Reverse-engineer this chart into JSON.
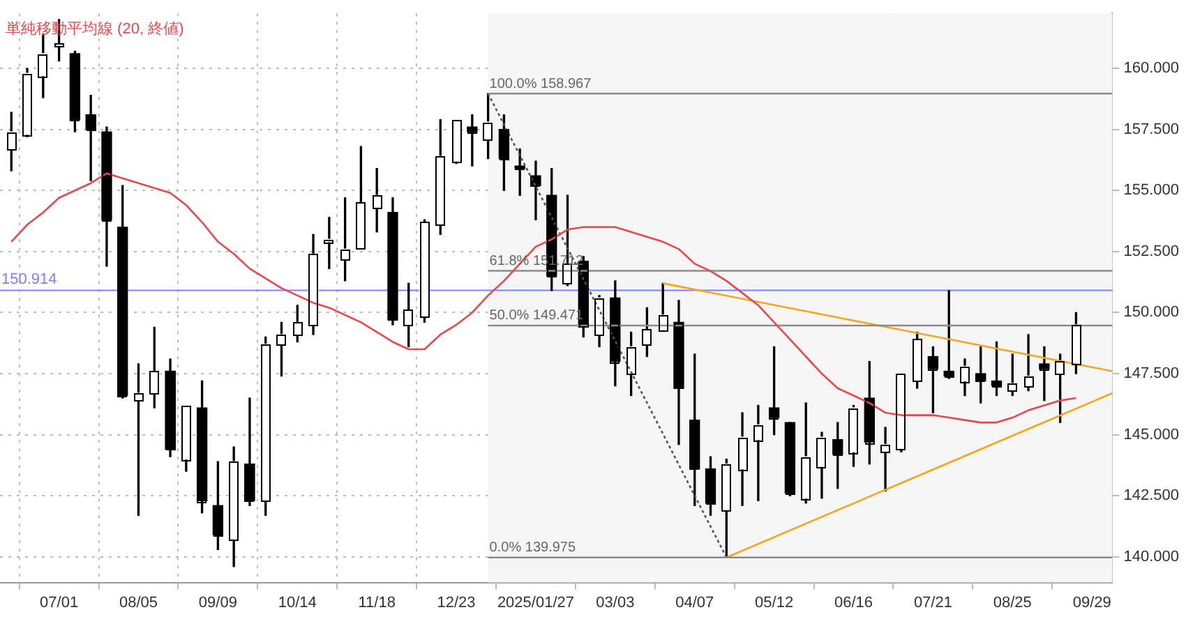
{
  "chart_data": {
    "type": "candlestick",
    "x": [
      "2024-06-10",
      "2024-06-17",
      "2024-06-24",
      "2024-07-01",
      "2024-07-08",
      "2024-07-15",
      "2024-07-22",
      "2024-07-29",
      "2024-08-05",
      "2024-08-12",
      "2024-08-19",
      "2024-08-26",
      "2024-09-02",
      "2024-09-09",
      "2024-09-16",
      "2024-09-23",
      "2024-09-30",
      "2024-10-07",
      "2024-10-14",
      "2024-10-21",
      "2024-10-28",
      "2024-11-04",
      "2024-11-11",
      "2024-11-18",
      "2024-11-25",
      "2024-12-02",
      "2024-12-09",
      "2024-12-16",
      "2024-12-23",
      "2024-12-30",
      "2025-01-06",
      "2025-01-13",
      "2025-01-20",
      "2025-01-27",
      "2025-02-03",
      "2025-02-10",
      "2025-02-17",
      "2025-02-24",
      "2025-03-03",
      "2025-03-10",
      "2025-03-17",
      "2025-03-24",
      "2025-03-31",
      "2025-04-07",
      "2025-04-14",
      "2025-04-21",
      "2025-04-28",
      "2025-05-05",
      "2025-05-12",
      "2025-05-19",
      "2025-05-26",
      "2025-06-02",
      "2025-06-09",
      "2025-06-16",
      "2025-06-23",
      "2025-06-30",
      "2025-07-07",
      "2025-07-14",
      "2025-07-21",
      "2025-07-28",
      "2025-08-04",
      "2025-08-11",
      "2025-08-18",
      "2025-08-25",
      "2025-09-01",
      "2025-09-08",
      "2025-09-15",
      "2025-09-22"
    ],
    "ohlc": [
      [
        156.7,
        158.2,
        155.8,
        157.4
      ],
      [
        157.3,
        160.0,
        157.2,
        159.8
      ],
      [
        159.7,
        161.4,
        158.8,
        160.6
      ],
      [
        160.9,
        162.0,
        160.3,
        161.0
      ],
      [
        160.6,
        160.7,
        157.4,
        157.9
      ],
      [
        158.1,
        158.9,
        155.4,
        157.5
      ],
      [
        157.4,
        157.6,
        151.9,
        153.8
      ],
      [
        153.5,
        155.2,
        146.5,
        146.6
      ],
      [
        146.4,
        147.9,
        141.7,
        146.7
      ],
      [
        146.7,
        149.4,
        146.1,
        147.6
      ],
      [
        147.6,
        148.1,
        144.1,
        144.4
      ],
      [
        144.0,
        146.2,
        143.5,
        146.2
      ],
      [
        146.1,
        147.2,
        141.8,
        142.3
      ],
      [
        142.1,
        143.9,
        140.3,
        140.9
      ],
      [
        140.7,
        144.5,
        139.6,
        143.9
      ],
      [
        143.8,
        146.5,
        142.1,
        142.3
      ],
      [
        142.3,
        149.0,
        141.7,
        148.7
      ],
      [
        148.7,
        149.6,
        147.4,
        149.1
      ],
      [
        149.1,
        150.3,
        148.8,
        149.6
      ],
      [
        149.5,
        153.2,
        149.1,
        152.4
      ],
      [
        152.9,
        153.9,
        151.8,
        153.0
      ],
      [
        152.2,
        154.7,
        151.3,
        152.6
      ],
      [
        152.6,
        156.8,
        152.6,
        154.5
      ],
      [
        154.3,
        155.9,
        153.3,
        154.8
      ],
      [
        154.1,
        154.7,
        149.5,
        149.7
      ],
      [
        149.5,
        151.2,
        148.6,
        150.1
      ],
      [
        149.8,
        153.8,
        149.6,
        153.7
      ],
      [
        153.6,
        157.9,
        153.2,
        156.4
      ],
      [
        156.2,
        157.9,
        156.1,
        157.9
      ],
      [
        157.6,
        158.1,
        156.0,
        157.4
      ],
      [
        157.1,
        158.967,
        156.3,
        157.8
      ],
      [
        157.5,
        158.1,
        155.0,
        156.3
      ],
      [
        156.0,
        156.7,
        154.8,
        155.9
      ],
      [
        155.6,
        156.2,
        153.8,
        155.2
      ],
      [
        154.8,
        155.9,
        150.9,
        151.5
      ],
      [
        151.2,
        154.8,
        151.1,
        152.0
      ],
      [
        152.1,
        152.3,
        149.0,
        149.4
      ],
      [
        149.1,
        150.7,
        148.6,
        150.6
      ],
      [
        150.6,
        151.3,
        147.0,
        148.0
      ],
      [
        147.5,
        149.2,
        146.6,
        148.6
      ],
      [
        148.7,
        150.2,
        148.2,
        149.3
      ],
      [
        149.3,
        151.2,
        149.3,
        149.9
      ],
      [
        149.6,
        150.5,
        144.6,
        146.9
      ],
      [
        145.6,
        148.3,
        142.1,
        143.6
      ],
      [
        143.6,
        144.1,
        141.7,
        142.2
      ],
      [
        141.9,
        144.0,
        139.975,
        143.8
      ],
      [
        143.6,
        145.9,
        142.1,
        144.9
      ],
      [
        144.8,
        146.2,
        142.3,
        145.4
      ],
      [
        146.1,
        148.6,
        145.0,
        145.7
      ],
      [
        145.5,
        145.5,
        142.5,
        142.6
      ],
      [
        142.4,
        146.3,
        142.2,
        144.1
      ],
      [
        143.7,
        145.1,
        142.4,
        144.9
      ],
      [
        144.8,
        145.5,
        142.8,
        144.2
      ],
      [
        144.3,
        146.2,
        143.7,
        146.1
      ],
      [
        146.5,
        148.0,
        143.8,
        144.7
      ],
      [
        144.3,
        145.3,
        142.7,
        144.6
      ],
      [
        144.4,
        147.5,
        144.3,
        147.5
      ],
      [
        147.2,
        149.2,
        146.9,
        148.9
      ],
      [
        148.2,
        148.6,
        145.9,
        147.7
      ],
      [
        147.6,
        150.9,
        147.3,
        147.4
      ],
      [
        147.2,
        148.1,
        146.6,
        147.8
      ],
      [
        147.5,
        148.6,
        146.3,
        147.2
      ],
      [
        147.2,
        148.8,
        146.6,
        147.0
      ],
      [
        146.8,
        148.3,
        146.6,
        147.1
      ],
      [
        147.0,
        149.1,
        146.8,
        147.4
      ],
      [
        147.9,
        148.6,
        146.4,
        147.7
      ],
      [
        147.5,
        148.3,
        145.5,
        148.0
      ],
      [
        147.9,
        150.0,
        147.5,
        149.5
      ]
    ],
    "colors": [
      "#ffffff",
      "#ffffff",
      "#ffffff",
      "#ffffff",
      "#000000",
      "#000000",
      "#000000",
      "#000000",
      "#ffffff",
      "#ffffff",
      "#000000",
      "#ffffff",
      "#000000",
      "#000000",
      "#ffffff",
      "#000000",
      "#ffffff",
      "#ffffff",
      "#ffffff",
      "#ffffff",
      "#ffffff",
      "#ffffff",
      "#ffffff",
      "#ffffff",
      "#000000",
      "#ffffff",
      "#ffffff",
      "#ffffff",
      "#ffffff",
      "#000000",
      "#ffffff",
      "#000000",
      "#000000",
      "#000000",
      "#000000",
      "#ffffff",
      "#000000",
      "#ffffff",
      "#000000",
      "#ffffff",
      "#ffffff",
      "#ffffff",
      "#000000",
      "#000000",
      "#000000",
      "#ffffff",
      "#ffffff",
      "#ffffff",
      "#000000",
      "#000000",
      "#ffffff",
      "#ffffff",
      "#000000",
      "#ffffff",
      "#000000",
      "#ffffff",
      "#ffffff",
      "#ffffff",
      "#000000",
      "#000000",
      "#ffffff",
      "#000000",
      "#000000",
      "#ffffff",
      "#ffffff",
      "#000000",
      "#ffffff",
      "#ffffff"
    ],
    "series": [
      {
        "type": "line",
        "name": "単純移動平均線 (20, 終値)",
        "color": "#e8474c",
        "values": [
          152.9,
          153.6,
          154.1,
          154.7,
          155.0,
          155.3,
          155.7,
          155.5,
          155.3,
          155.1,
          154.9,
          154.4,
          153.7,
          152.9,
          152.4,
          151.8,
          151.4,
          151.0,
          150.7,
          150.4,
          150.2,
          149.9,
          149.6,
          149.2,
          148.8,
          148.5,
          148.5,
          149.1,
          149.5,
          150.0,
          150.7,
          151.3,
          152.0,
          152.7,
          153.0,
          153.4,
          153.5,
          153.5,
          153.5,
          153.3,
          153.1,
          152.9,
          152.6,
          152.0,
          151.7,
          151.3,
          150.8,
          150.3,
          149.6,
          148.9,
          148.2,
          147.5,
          146.9,
          146.6,
          146.3,
          145.9,
          145.8,
          145.8,
          145.8,
          145.7,
          145.6,
          145.5,
          145.5,
          145.7,
          146.0,
          146.2,
          146.4,
          146.5
        ]
      },
      {
        "type": "line",
        "color": "#8c8c8c",
        "x": [
          "2025-01-06",
          "2025-10-08"
        ],
        "values": [
          158.967,
          158.967
        ]
      },
      {
        "type": "line",
        "color": "#8c8c8c",
        "x": [
          "2025-01-06",
          "2025-10-08"
        ],
        "values": [
          151.712,
          151.712
        ]
      },
      {
        "type": "line",
        "color": "#8c8c8c",
        "x": [
          "2025-01-06",
          "2025-10-08"
        ],
        "values": [
          149.471,
          149.471
        ]
      },
      {
        "type": "line",
        "color": "#8c8c8c",
        "x": [
          "2025-01-06",
          "2025-10-08"
        ],
        "values": [
          139.975,
          139.975
        ]
      },
      {
        "type": "line",
        "color": "#555555",
        "line_style": "dotted",
        "x": [
          "2025-01-06",
          "2025-04-21"
        ],
        "values": [
          158.967,
          139.975
        ]
      },
      {
        "type": "line",
        "color": "#f0a81c",
        "x": [
          "2025-03-24",
          "2025-10-08"
        ],
        "values": [
          151.2,
          147.6
        ]
      },
      {
        "type": "line",
        "color": "#f0a81c",
        "x": [
          "2025-04-21",
          "2025-10-08"
        ],
        "values": [
          139.975,
          146.7
        ]
      }
    ],
    "annotations": [
      {
        "text": "100.0% 158.967",
        "x": "2025-01-06",
        "y": 158.967
      },
      {
        "text": "61.8% 151.712",
        "x": "2025-01-06",
        "y": 151.712
      },
      {
        "text": "50.0% 149.471",
        "x": "2025-01-06",
        "y": 149.471
      },
      {
        "text": "0.0% 139.975",
        "x": "2025-01-06",
        "y": 139.975
      }
    ],
    "ref_lines": [
      {
        "axis": "y",
        "value": 150.914,
        "label": "150.914",
        "color": "#8080ff"
      }
    ],
    "bands": [
      {
        "axis": "x",
        "from": "2025-01-06",
        "to": "2025-10-08",
        "color": "#f5f5f5"
      }
    ],
    "xlim": [
      "2024-06-05",
      "2025-10-08"
    ],
    "xticks": [
      {
        "value": "2024-07-01",
        "label": "07/01"
      },
      {
        "value": "2024-08-05",
        "label": "08/05"
      },
      {
        "value": "2024-09-09",
        "label": "09/09"
      },
      {
        "value": "2024-10-14",
        "label": "10/14"
      },
      {
        "value": "2024-11-18",
        "label": "11/18"
      },
      {
        "value": "2024-12-23",
        "label": "12/23"
      },
      {
        "value": "2025-01-27",
        "label": "2025/01/27"
      },
      {
        "value": "2025-03-03",
        "label": "03/03"
      },
      {
        "value": "2025-04-07",
        "label": "04/07"
      },
      {
        "value": "2025-05-12",
        "label": "05/12"
      },
      {
        "value": "2025-06-16",
        "label": "06/16"
      },
      {
        "value": "2025-07-21",
        "label": "07/21"
      },
      {
        "value": "2025-08-25",
        "label": "08/25"
      },
      {
        "value": "2025-09-29",
        "label": "09/29"
      }
    ],
    "ylim": [
      138.95,
      162.25
    ],
    "yticks": [
      {
        "value": 140,
        "label": "140.000"
      },
      {
        "value": 142.5,
        "label": "142.500"
      },
      {
        "value": 145,
        "label": "145.000"
      },
      {
        "value": 147.5,
        "label": "147.500"
      },
      {
        "value": 150,
        "label": "150.000"
      },
      {
        "value": 152.5,
        "label": "152.500"
      },
      {
        "value": 155,
        "label": "155.000"
      },
      {
        "value": 157.5,
        "label": "157.500"
      },
      {
        "value": 160,
        "label": "160.000"
      }
    ],
    "grid": true,
    "legend": "top left",
    "line_style": "solid",
    "marker": "none"
  }
}
